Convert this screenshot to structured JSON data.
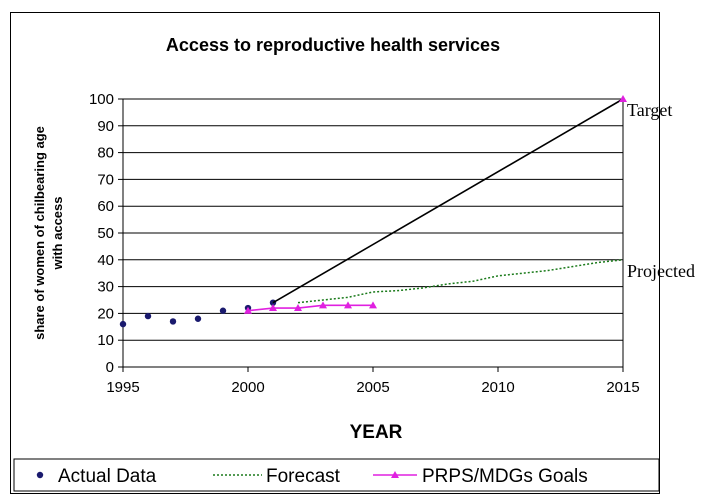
{
  "chart_data": {
    "type": "line",
    "title": "Access to reproductive health services",
    "xlabel": "YEAR",
    "ylabel_line1": "share of women of chilbearing age",
    "ylabel_line2": "with access",
    "xlim": [
      1995,
      2015
    ],
    "ylim": [
      0,
      100
    ],
    "x_ticks": [
      1995,
      2000,
      2005,
      2010,
      2015
    ],
    "y_ticks": [
      0,
      10,
      20,
      30,
      40,
      50,
      60,
      70,
      80,
      90,
      100
    ],
    "grid": "horizontal",
    "legend_position": "bottom",
    "series": [
      {
        "name": "Actual Data",
        "style": "markers",
        "color": "#1a1a6e",
        "points": [
          [
            1995,
            16
          ],
          [
            1996,
            19
          ],
          [
            1997,
            17
          ],
          [
            1998,
            18
          ],
          [
            1999,
            21
          ],
          [
            2000,
            22
          ],
          [
            2001,
            24
          ]
        ]
      },
      {
        "name": "Forecast",
        "style": "dotted",
        "color": "#1a7a1a",
        "points": [
          [
            2002,
            24
          ],
          [
            2003,
            25
          ],
          [
            2004,
            26
          ],
          [
            2005,
            28
          ],
          [
            2006,
            28.5
          ],
          [
            2007,
            29.5
          ],
          [
            2008,
            31
          ],
          [
            2009,
            32
          ],
          [
            2010,
            34
          ],
          [
            2011,
            35
          ],
          [
            2012,
            36
          ],
          [
            2013,
            37.5
          ],
          [
            2014,
            39
          ],
          [
            2015,
            40
          ]
        ]
      },
      {
        "name": "PRPS/MDGs Goals",
        "style": "line-triangle",
        "color": "#e020e0",
        "points": [
          [
            2000,
            21
          ],
          [
            2001,
            22
          ],
          [
            2002,
            22
          ],
          [
            2003,
            23
          ],
          [
            2004,
            23
          ],
          [
            2005,
            23
          ]
        ]
      },
      {
        "name": "",
        "style": "solid",
        "color": "#000000",
        "points": [
          [
            2001,
            24
          ],
          [
            2015,
            100
          ]
        ]
      },
      {
        "name": "",
        "style": "triangle",
        "color": "#e020e0",
        "points": [
          [
            2015,
            100
          ]
        ]
      }
    ],
    "annotations": [
      {
        "text": "Target",
        "x": 2015,
        "y": 100
      },
      {
        "text": "Projected",
        "x": 2015,
        "y": 40
      }
    ]
  }
}
